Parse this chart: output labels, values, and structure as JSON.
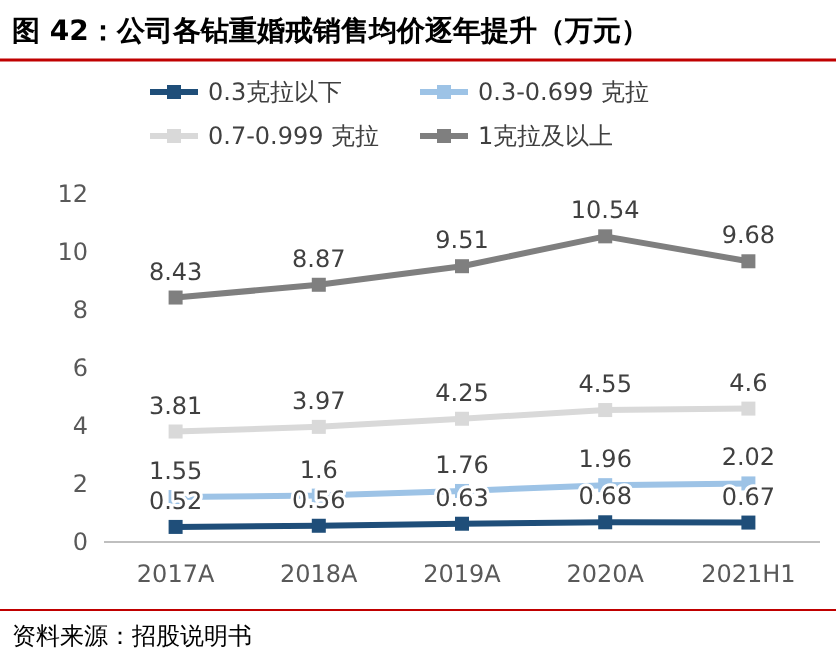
{
  "chart_data": {
    "type": "line",
    "title": "图 42：公司各钻重婚戒销售均价逐年提升（万元）",
    "categories": [
      "2017A",
      "2018A",
      "2019A",
      "2020A",
      "2021H1"
    ],
    "series": [
      {
        "name": "0.3克拉以下",
        "color": "#1f4e79",
        "values": [
          0.52,
          0.56,
          0.63,
          0.68,
          0.67
        ]
      },
      {
        "name": "0.3-0.699 克拉",
        "color": "#9dc3e6",
        "values": [
          1.55,
          1.6,
          1.76,
          1.96,
          2.02
        ]
      },
      {
        "name": "0.7-0.999 克拉",
        "color": "#d9d9d9",
        "values": [
          3.81,
          3.97,
          4.25,
          4.55,
          4.6
        ]
      },
      {
        "name": "1克拉及以上",
        "color": "#7f7f7f",
        "values": [
          8.43,
          8.87,
          9.51,
          10.54,
          9.68
        ]
      }
    ],
    "ylim": [
      0,
      12
    ],
    "yticks": [
      0,
      2,
      4,
      6,
      8,
      10,
      12
    ],
    "data_labels": true,
    "marker": "square",
    "legend": "top",
    "grid": false,
    "annotations": [
      "资料来源：招股说明书"
    ]
  }
}
